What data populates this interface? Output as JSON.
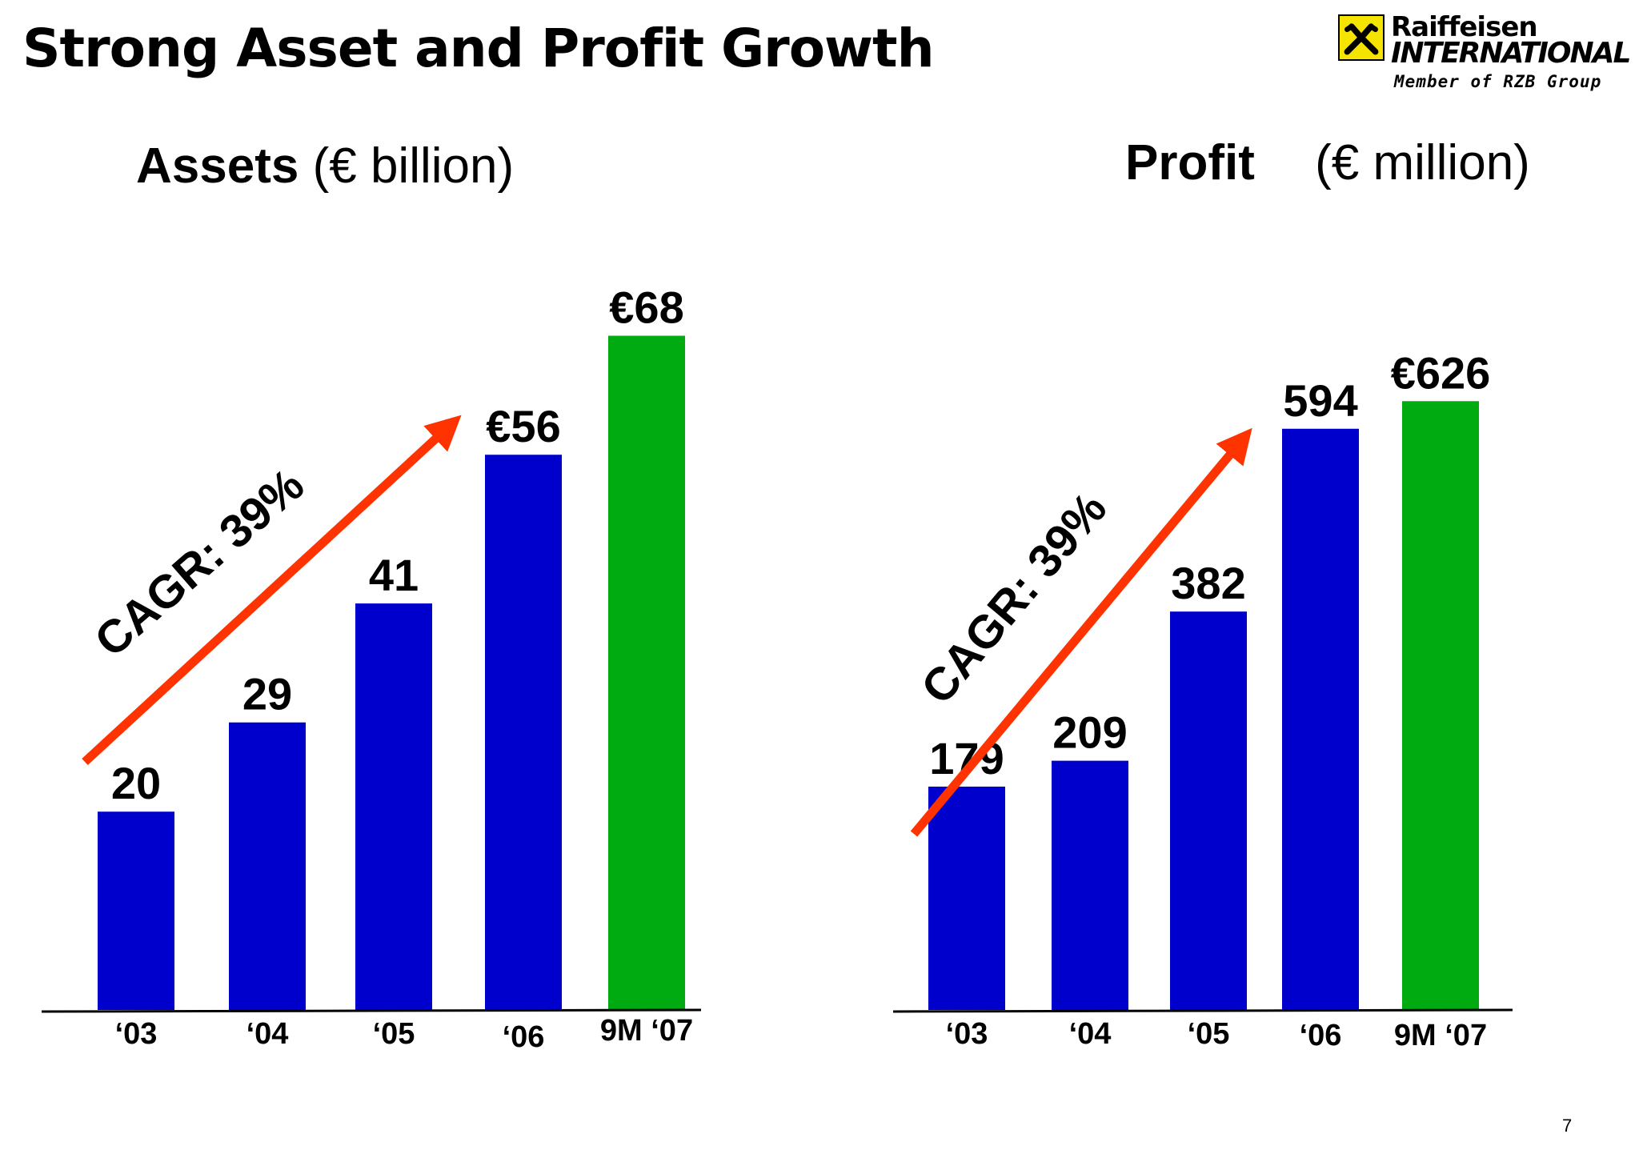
{
  "slide": {
    "title": "Strong Asset and Profit Growth",
    "page_number": "7"
  },
  "logo": {
    "name": "Raiffeisen",
    "sub": "INTERNATIONAL",
    "tagline": "Member of RZB Group",
    "accent_color": "#f5e400"
  },
  "colors": {
    "bar_historic": "#0000cc",
    "bar_current": "#00aa11",
    "arrow": "#ff3300"
  },
  "chart_data": [
    {
      "type": "bar",
      "title_name": "Assets",
      "title_unit": "(€ billion)",
      "categories": [
        "‘03",
        "‘04",
        "‘05",
        "‘06",
        "9M ‘07"
      ],
      "values": [
        20,
        29,
        41,
        56,
        68
      ],
      "value_labels": [
        "20",
        "29",
        "41",
        "€56",
        "€68"
      ],
      "highlight_index": 4,
      "annotation": "CAGR: 39%",
      "ylim": [
        0,
        72
      ]
    },
    {
      "type": "bar",
      "title_name": "Profit",
      "title_unit": "(€ million)",
      "categories": [
        "‘03",
        "‘04",
        "‘05",
        "‘06",
        "9M ‘07"
      ],
      "values": [
        179,
        209,
        382,
        594,
        626
      ],
      "value_labels": [
        "179",
        "209",
        "382",
        "594",
        "€626"
      ],
      "highlight_index": 4,
      "annotation": "CAGR: 39%",
      "ylim": [
        -80,
        720
      ]
    }
  ]
}
